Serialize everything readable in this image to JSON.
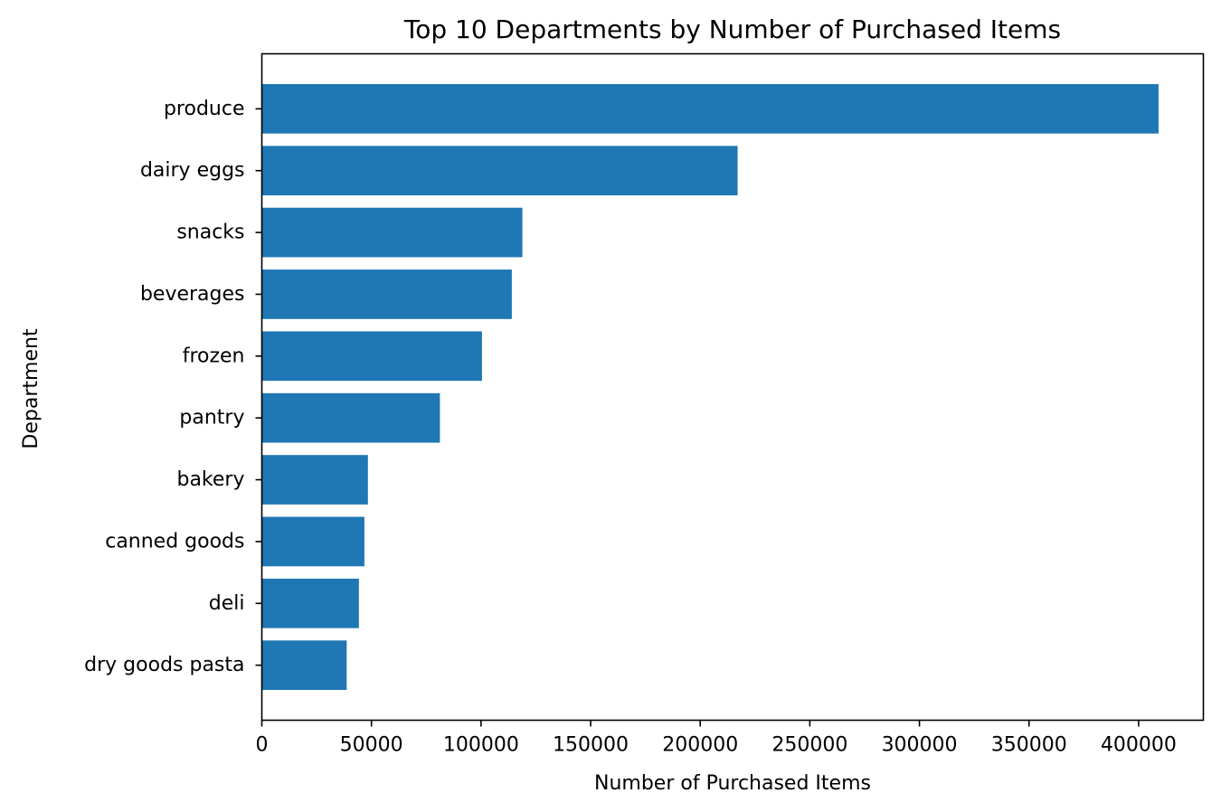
{
  "chart_data": {
    "type": "bar",
    "orientation": "horizontal",
    "title": "Top 10 Departments by Number of Purchased Items",
    "xlabel": "Number of Purchased Items",
    "ylabel": "Department",
    "categories": [
      "produce",
      "dairy eggs",
      "snacks",
      "beverages",
      "frozen",
      "pantry",
      "bakery",
      "canned goods",
      "deli",
      "dry goods pasta"
    ],
    "values": [
      409087,
      217051,
      118862,
      114046,
      100426,
      81242,
      48394,
      46799,
      44291,
      38713
    ],
    "xlim": [
      0,
      429541
    ],
    "xticks": [
      0,
      50000,
      100000,
      150000,
      200000,
      250000,
      300000,
      350000,
      400000
    ],
    "bar_color": "#1f77b4",
    "grid": false,
    "legend": false
  }
}
